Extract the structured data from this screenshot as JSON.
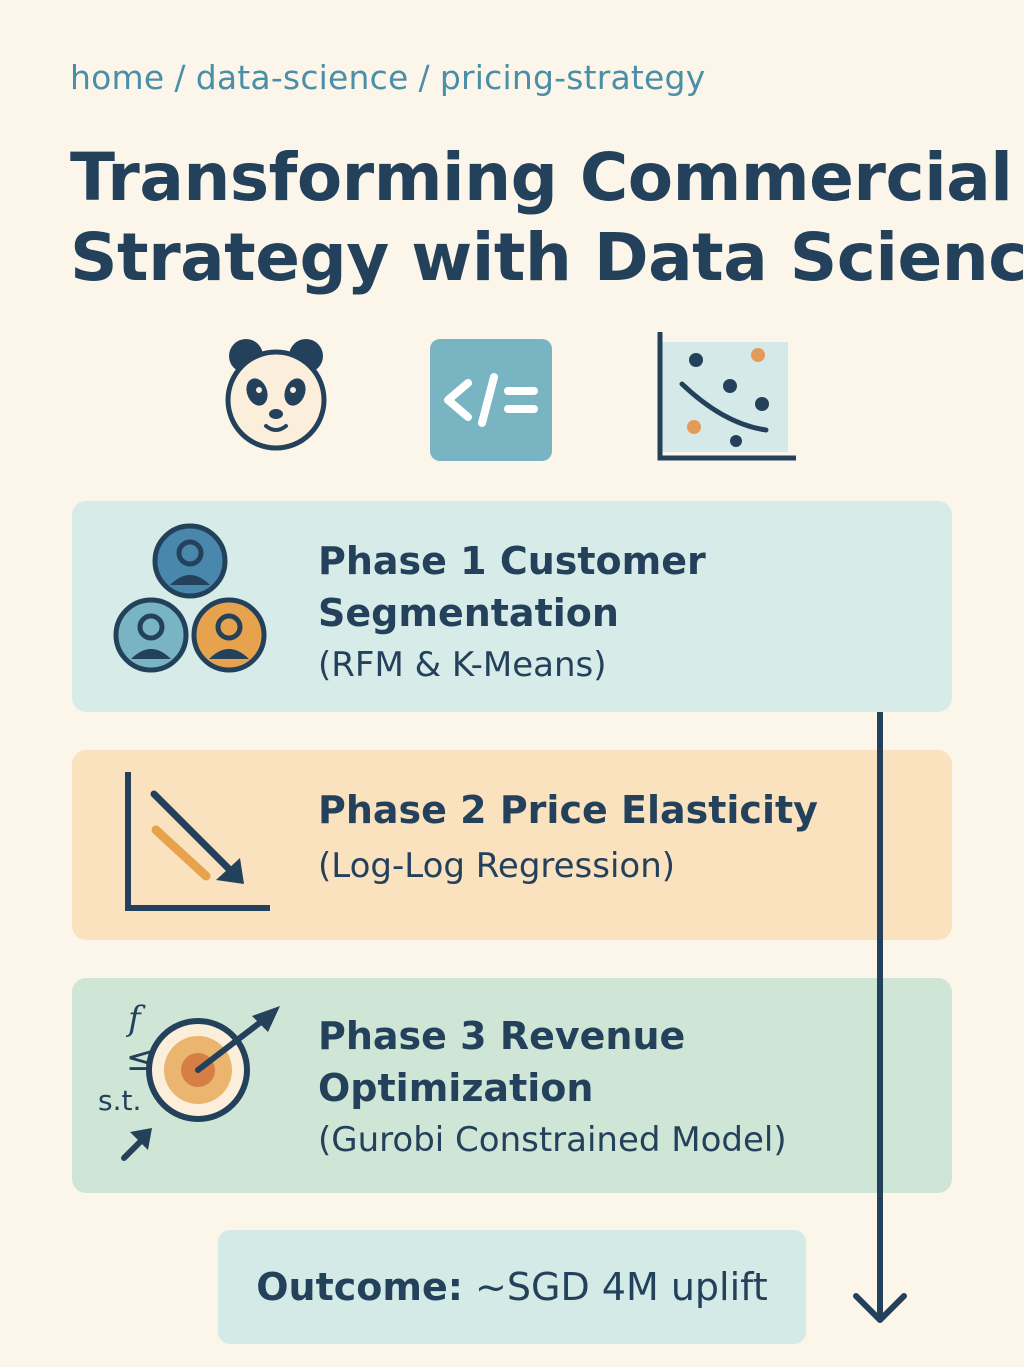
{
  "breadcrumb": {
    "items": [
      "home",
      "data-science",
      "pricing-strategy"
    ],
    "separator": "/"
  },
  "title": {
    "line1": "Transforming Commercial",
    "line2": "Strategy with Data Science"
  },
  "header_icons": [
    "panda-icon",
    "code-icon",
    "scatter-plot-icon"
  ],
  "phases": [
    {
      "title_lines": [
        "Phase 1  Customer",
        "Segmentation"
      ],
      "subtitle": "(RFM & K-Means)",
      "icon": "customer-segments-icon"
    },
    {
      "title_lines": [
        "Phase 2  Price Elasticity"
      ],
      "subtitle": "(Log-Log Regression)",
      "icon": "downward-trend-icon"
    },
    {
      "title_lines": [
        "Phase 3  Revenue",
        "Optimization"
      ],
      "subtitle": "(Gurobi Constrained Model)",
      "icon": "target-optimization-icon",
      "icon_labels": [
        "f",
        "≤",
        "s.t."
      ]
    }
  ],
  "outcome": {
    "label": "Outcome:",
    "value": "~SGD 4M uplift"
  },
  "colors": {
    "background": "#fcf6ea",
    "text": "#24415c",
    "breadcrumb": "#4a8fa8",
    "phase1": "#d7ebe8",
    "phase2": "#fae2bf",
    "phase3": "#cfe5d6",
    "accent_orange": "#e6a24c"
  }
}
